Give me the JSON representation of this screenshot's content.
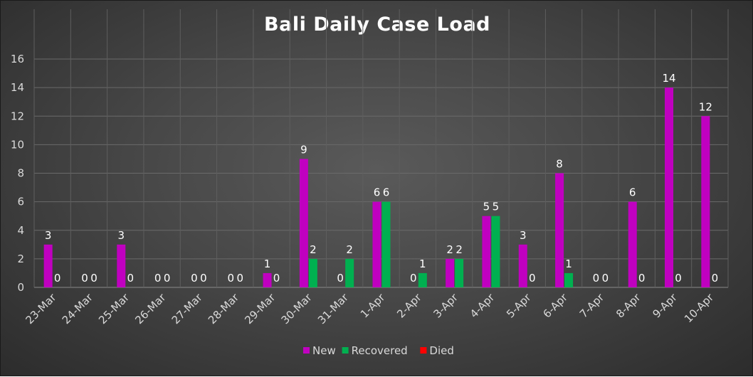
{
  "chart_data": {
    "type": "bar",
    "title": "Bali Daily Case Load",
    "xlabel": "",
    "ylabel": "",
    "ylim": [
      0,
      16
    ],
    "yticks": [
      0,
      2,
      4,
      6,
      8,
      10,
      12,
      14,
      16
    ],
    "grid": true,
    "legend_position": "bottom",
    "categories": [
      "23-Mar",
      "24-Mar",
      "25-Mar",
      "26-Mar",
      "27-Mar",
      "28-Mar",
      "29-Mar",
      "30-Mar",
      "31-Mar",
      "1-Apr",
      "2-Apr",
      "3-Apr",
      "4-Apr",
      "5-Apr",
      "6-Apr",
      "7-Apr",
      "8-Apr",
      "9-Apr",
      "10-Apr"
    ],
    "series": [
      {
        "name": "New",
        "color": "#c000c0",
        "values": [
          3,
          0,
          3,
          0,
          0,
          0,
          1,
          9,
          0,
          6,
          0,
          2,
          5,
          3,
          8,
          0,
          6,
          14,
          12
        ]
      },
      {
        "name": "Recovered",
        "color": "#00b050",
        "values": [
          0,
          0,
          0,
          0,
          0,
          0,
          0,
          2,
          2,
          6,
          1,
          2,
          5,
          0,
          1,
          0,
          0,
          0,
          0
        ]
      },
      {
        "name": "Died",
        "color": "#ff0000",
        "values": [
          null,
          null,
          null,
          null,
          null,
          null,
          null,
          null,
          null,
          null,
          null,
          null,
          null,
          null,
          null,
          null,
          null,
          null,
          null
        ]
      }
    ]
  }
}
